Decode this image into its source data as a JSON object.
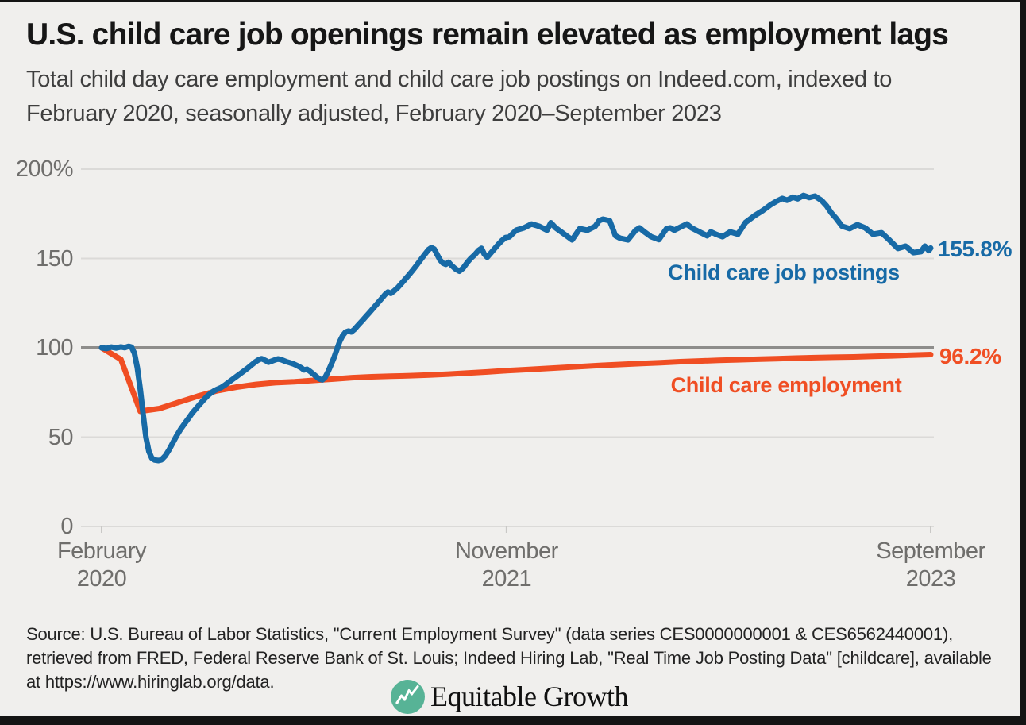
{
  "page": {
    "background": "#f0efed",
    "border_color": "#141414"
  },
  "header": {
    "title": "U.S. child care job openings remain elevated as employment lags",
    "subtitle_line1": "Total child day care employment and child care job postings on Indeed.com, indexed to",
    "subtitle_line2": "February 2020, seasonally adjusted, February 2020–September 2023"
  },
  "chart_data": {
    "type": "line",
    "title": "U.S. child care job openings remain elevated as employment lags",
    "x_unit": "months since February 2020",
    "ylim": [
      0,
      200
    ],
    "grid": "horizontal",
    "legend_position": "inline-right",
    "reference_line_value": 100,
    "y_ticks": [
      {
        "label": "200%",
        "value": 200
      },
      {
        "label": "150",
        "value": 150
      },
      {
        "label": "100",
        "value": 100
      },
      {
        "label": "50",
        "value": 50
      },
      {
        "label": "0",
        "value": 0
      }
    ],
    "x_ticks": [
      {
        "line1": "February",
        "line2": "2020",
        "month": 0
      },
      {
        "line1": "November",
        "line2": "2021",
        "month": 21
      },
      {
        "line1": "September",
        "line2": "2023",
        "month": 43
      }
    ],
    "series": [
      {
        "name": "Child care job postings",
        "color": "#176aa6",
        "end_label": "155.8%",
        "end_value": 155.8,
        "points": [
          [
            0,
            100
          ],
          [
            0.25,
            99.6
          ],
          [
            0.5,
            100.4
          ],
          [
            0.75,
            99.9
          ],
          [
            1,
            100.5
          ],
          [
            1.2,
            100.1
          ],
          [
            1.4,
            100.8
          ],
          [
            1.55,
            100.4
          ],
          [
            1.7,
            97
          ],
          [
            1.85,
            89
          ],
          [
            2,
            77
          ],
          [
            2.15,
            63
          ],
          [
            2.3,
            50
          ],
          [
            2.45,
            42
          ],
          [
            2.6,
            38.3
          ],
          [
            2.75,
            37.2
          ],
          [
            2.95,
            36.9
          ],
          [
            3.1,
            37.3
          ],
          [
            3.3,
            39.5
          ],
          [
            3.5,
            43
          ],
          [
            3.7,
            47
          ],
          [
            3.9,
            51
          ],
          [
            4.1,
            54.5
          ],
          [
            4.3,
            57.5
          ],
          [
            4.5,
            60.5
          ],
          [
            4.7,
            63.5
          ],
          [
            4.9,
            66
          ],
          [
            5.1,
            68.5
          ],
          [
            5.3,
            71
          ],
          [
            5.5,
            73.2
          ],
          [
            5.7,
            75
          ],
          [
            5.85,
            76
          ],
          [
            6,
            76.8
          ],
          [
            6.2,
            77.8
          ],
          [
            6.4,
            79.2
          ],
          [
            6.6,
            80.8
          ],
          [
            6.8,
            82.4
          ],
          [
            7,
            84
          ],
          [
            7.2,
            85.6
          ],
          [
            7.4,
            87.2
          ],
          [
            7.6,
            88.8
          ],
          [
            7.8,
            90.6
          ],
          [
            8,
            92.3
          ],
          [
            8.15,
            93.4
          ],
          [
            8.3,
            93.9
          ],
          [
            8.5,
            92.9
          ],
          [
            8.65,
            91.9
          ],
          [
            8.8,
            92.5
          ],
          [
            9,
            93.3
          ],
          [
            9.15,
            93.8
          ],
          [
            9.35,
            93.2
          ],
          [
            9.55,
            92.3
          ],
          [
            9.75,
            91.7
          ],
          [
            9.95,
            91
          ],
          [
            10.15,
            90
          ],
          [
            10.35,
            88.8
          ],
          [
            10.5,
            87.6
          ],
          [
            10.65,
            88
          ],
          [
            10.8,
            86.9
          ],
          [
            11,
            85.1
          ],
          [
            11.15,
            83.8
          ],
          [
            11.3,
            82.5
          ],
          [
            11.45,
            82.1
          ],
          [
            11.6,
            83.6
          ],
          [
            11.75,
            86.8
          ],
          [
            11.9,
            90.5
          ],
          [
            12.05,
            94.5
          ],
          [
            12.2,
            99
          ],
          [
            12.35,
            103.5
          ],
          [
            12.5,
            106.8
          ],
          [
            12.65,
            108.8
          ],
          [
            12.8,
            109.4
          ],
          [
            12.95,
            108.9
          ],
          [
            13.1,
            110.2
          ],
          [
            13.3,
            112.6
          ],
          [
            13.5,
            115
          ],
          [
            13.7,
            117.4
          ],
          [
            13.9,
            119.8
          ],
          [
            14.1,
            122.3
          ],
          [
            14.3,
            124.8
          ],
          [
            14.5,
            127.3
          ],
          [
            14.7,
            129.8
          ],
          [
            14.85,
            131.2
          ],
          [
            15,
            130.5
          ],
          [
            15.15,
            131.7
          ],
          [
            15.35,
            133.6
          ],
          [
            15.55,
            136
          ],
          [
            15.75,
            138.5
          ],
          [
            15.95,
            141
          ],
          [
            16.15,
            143.6
          ],
          [
            16.35,
            146.4
          ],
          [
            16.55,
            149.3
          ],
          [
            16.75,
            152.2
          ],
          [
            16.95,
            154.9
          ],
          [
            17.1,
            156.1
          ],
          [
            17.25,
            155.3
          ],
          [
            17.4,
            152.2
          ],
          [
            17.55,
            149.2
          ],
          [
            17.7,
            147.4
          ],
          [
            17.85,
            146.7
          ],
          [
            18,
            147.9
          ],
          [
            18.15,
            146.1
          ],
          [
            18.35,
            144.2
          ],
          [
            18.55,
            142.9
          ],
          [
            18.75,
            144.6
          ],
          [
            18.95,
            147.6
          ],
          [
            19.15,
            150.1
          ],
          [
            19.35,
            152.1
          ],
          [
            19.55,
            154.6
          ],
          [
            19.7,
            155.7
          ],
          [
            19.85,
            152.4
          ],
          [
            20,
            150.7
          ],
          [
            20.15,
            152.6
          ],
          [
            20.35,
            155.1
          ],
          [
            20.55,
            157.6
          ],
          [
            20.75,
            159.9
          ],
          [
            20.95,
            161.7
          ],
          [
            21.15,
            162.1
          ],
          [
            21.5,
            165.8
          ],
          [
            21.9,
            167.1
          ],
          [
            22.3,
            169.3
          ],
          [
            22.7,
            168
          ],
          [
            23.1,
            165.8
          ],
          [
            23.3,
            170
          ],
          [
            23.55,
            167.1
          ],
          [
            24,
            163.6
          ],
          [
            24.4,
            160.4
          ],
          [
            24.8,
            166.7
          ],
          [
            25.2,
            165.8
          ],
          [
            25.6,
            168
          ],
          [
            25.8,
            171.1
          ],
          [
            26,
            172
          ],
          [
            26.35,
            171.1
          ],
          [
            26.65,
            162.7
          ],
          [
            26.9,
            161.3
          ],
          [
            27.3,
            160.4
          ],
          [
            27.7,
            165.8
          ],
          [
            27.9,
            167.1
          ],
          [
            28.15,
            164.9
          ],
          [
            28.5,
            162.2
          ],
          [
            28.9,
            160.6
          ],
          [
            29.1,
            163.6
          ],
          [
            29.3,
            166.7
          ],
          [
            29.5,
            167.1
          ],
          [
            29.7,
            165.8
          ],
          [
            30.1,
            168
          ],
          [
            30.35,
            169.3
          ],
          [
            30.6,
            167.1
          ],
          [
            31,
            164.9
          ],
          [
            31.4,
            162.7
          ],
          [
            31.6,
            164.9
          ],
          [
            31.85,
            163.6
          ],
          [
            32.2,
            162.2
          ],
          [
            32.6,
            164.9
          ],
          [
            33,
            163.6
          ],
          [
            33.4,
            170.2
          ],
          [
            33.85,
            173.8
          ],
          [
            34.3,
            176.9
          ],
          [
            34.7,
            180.1
          ],
          [
            35,
            182
          ],
          [
            35.3,
            183.6
          ],
          [
            35.55,
            182.6
          ],
          [
            35.85,
            184.3
          ],
          [
            36.1,
            183.4
          ],
          [
            36.4,
            185.3
          ],
          [
            36.7,
            184.1
          ],
          [
            37,
            184.9
          ],
          [
            37.35,
            182.4
          ],
          [
            37.6,
            179.4
          ],
          [
            37.85,
            175.4
          ],
          [
            38.1,
            172.4
          ],
          [
            38.4,
            168.1
          ],
          [
            38.8,
            166.7
          ],
          [
            39.2,
            168.9
          ],
          [
            39.6,
            167.1
          ],
          [
            40,
            163.6
          ],
          [
            40.45,
            164.4
          ],
          [
            40.85,
            160.4
          ],
          [
            41.3,
            155.6
          ],
          [
            41.7,
            156.9
          ],
          [
            42.1,
            153.3
          ],
          [
            42.5,
            153.8
          ],
          [
            42.7,
            156.9
          ],
          [
            42.9,
            154.4
          ],
          [
            43,
            155.8
          ]
        ]
      },
      {
        "name": "Child care employment",
        "color": "#f04e23",
        "end_label": "96.2%",
        "end_value": 96.2,
        "points": [
          [
            0,
            100
          ],
          [
            1,
            93.5
          ],
          [
            2,
            64.5
          ],
          [
            3,
            66
          ],
          [
            4,
            69.5
          ],
          [
            5,
            73
          ],
          [
            6,
            76
          ],
          [
            7,
            78
          ],
          [
            8,
            79.5
          ],
          [
            9,
            80.5
          ],
          [
            10,
            81
          ],
          [
            11,
            81.8
          ],
          [
            12,
            82.5
          ],
          [
            13,
            83.3
          ],
          [
            14,
            83.8
          ],
          [
            15,
            84.1
          ],
          [
            16,
            84.4
          ],
          [
            17,
            84.8
          ],
          [
            18,
            85.3
          ],
          [
            19,
            85.9
          ],
          [
            20,
            86.5
          ],
          [
            21,
            87.2
          ],
          [
            22,
            87.8
          ],
          [
            23,
            88.4
          ],
          [
            24,
            89
          ],
          [
            25,
            89.6
          ],
          [
            26,
            90.2
          ],
          [
            27,
            90.7
          ],
          [
            28,
            91.2
          ],
          [
            29,
            91.7
          ],
          [
            30,
            92.2
          ],
          [
            31,
            92.6
          ],
          [
            32,
            93
          ],
          [
            33,
            93.3
          ],
          [
            34,
            93.6
          ],
          [
            35,
            93.9
          ],
          [
            36,
            94.2
          ],
          [
            37,
            94.5
          ],
          [
            38,
            94.7
          ],
          [
            39,
            94.9
          ],
          [
            40,
            95.2
          ],
          [
            41,
            95.5
          ],
          [
            42,
            95.9
          ],
          [
            43,
            96.2
          ]
        ]
      }
    ],
    "colors": {
      "gridline": "#dbdad8",
      "reference_line": "#8e8d8b",
      "tick": "#c9c8c6",
      "axis_text": "#6f6e6c"
    }
  },
  "footer": {
    "source_line1": "Source: U.S. Bureau of Labor Statistics, \"Current Employment Survey\" (data series CES0000000001 & CES6562440001),",
    "source_line2": "retrieved from FRED, Federal Reserve Bank of St. Louis; Indeed Hiring Lab, \"Real Time Job Posting Data\" [childcare], available",
    "source_line3": "at https://www.hiringlab.org/data.",
    "logo_text": "Equitable Growth",
    "logo_color": "#57b396"
  }
}
